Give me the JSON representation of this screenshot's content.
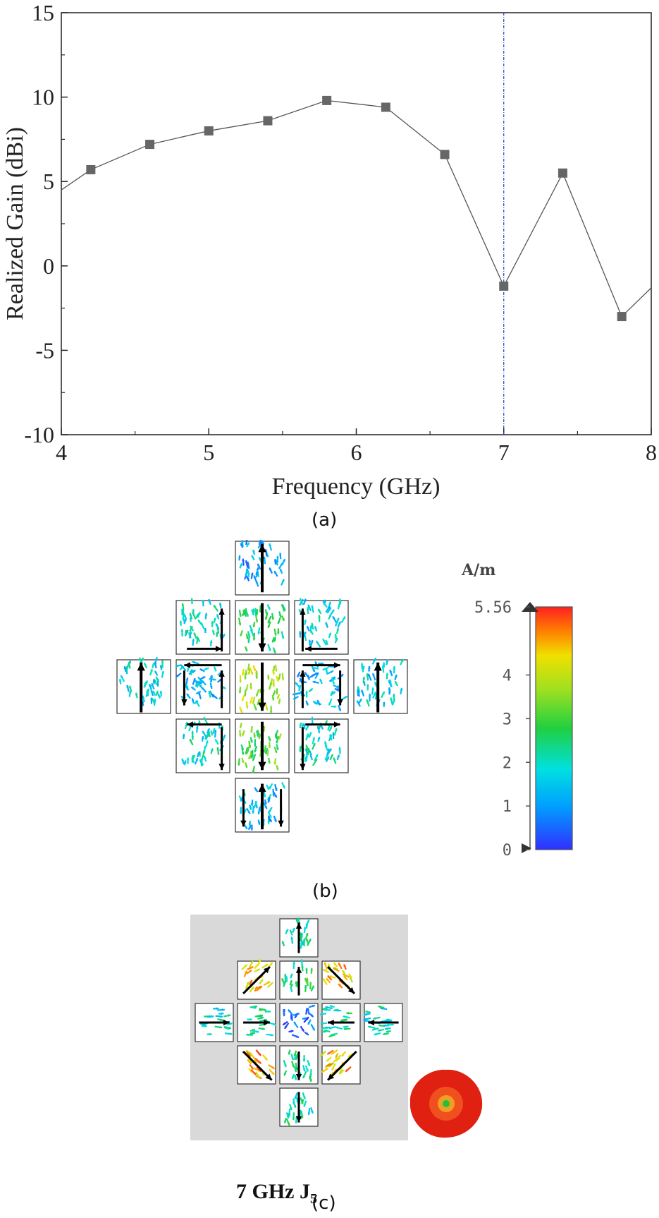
{
  "figure": {
    "label_a": "(a)",
    "label_b": "(b)",
    "label_c": "(c)"
  },
  "chart_data": {
    "type": "line",
    "xlabel": "Frequency (GHz)",
    "ylabel": "Realized Gain (dBi)",
    "xlim": [
      4,
      8
    ],
    "ylim": [
      -10,
      15
    ],
    "xticks": [
      "4",
      "5",
      "6",
      "7",
      "8"
    ],
    "yticks": [
      "-10",
      "-5",
      "0",
      "5",
      "10",
      "15"
    ],
    "grid": false,
    "series": [
      {
        "x": [
          4.0,
          4.2,
          4.6,
          5.0,
          5.4,
          5.8,
          6.2,
          6.6,
          7.0,
          7.4,
          7.8,
          8.0
        ],
        "y": [
          4.5,
          5.7,
          7.2,
          8.0,
          8.6,
          9.8,
          9.4,
          6.6,
          -1.2,
          5.5,
          -3.0,
          -1.3
        ],
        "markers_from_index": 1,
        "markers_to_index": 10,
        "color": "#555555",
        "marker_color": "#666666"
      }
    ],
    "reference_line": {
      "x": 7,
      "color": "#1f3fbf"
    }
  },
  "current_plot_b": {
    "unit": "A/m",
    "colorbar_ticks": [
      "5.56",
      "4",
      "3",
      "2",
      "1",
      "0"
    ],
    "colorbar_max": 5.56,
    "colorbar_min": 0
  },
  "current_plot_c": {
    "caption_main": "7 GHz  J",
    "caption_sub": "5",
    "background": "#d9d9d9"
  }
}
